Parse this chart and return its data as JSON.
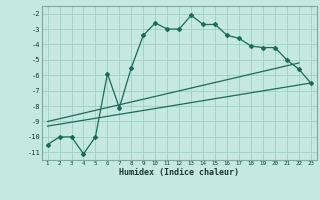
{
  "xlabel": "Humidex (Indice chaleur)",
  "bg_color": "#c5e8e0",
  "grid_color": "#9dcfc5",
  "line_color": "#1a6b5a",
  "xlim": [
    0.5,
    23.5
  ],
  "ylim": [
    -11.5,
    -1.5
  ],
  "x_ticks": [
    1,
    2,
    3,
    4,
    5,
    6,
    7,
    8,
    9,
    10,
    11,
    12,
    13,
    14,
    15,
    16,
    17,
    18,
    19,
    20,
    21,
    22,
    23
  ],
  "y_ticks": [
    -11,
    -10,
    -9,
    -8,
    -7,
    -6,
    -5,
    -4,
    -3,
    -2
  ],
  "line1_x": [
    1,
    2,
    3,
    4,
    5,
    6,
    7,
    8,
    9,
    10,
    11,
    12,
    13,
    14,
    15,
    16,
    17,
    18,
    19,
    20,
    21,
    22,
    23
  ],
  "line1_y": [
    -10.5,
    -10.0,
    -10.0,
    -11.1,
    -10.0,
    -5.9,
    -8.1,
    -5.5,
    -3.4,
    -2.6,
    -3.0,
    -3.0,
    -2.1,
    -2.7,
    -2.7,
    -3.4,
    -3.6,
    -4.1,
    -4.2,
    -4.2,
    -5.0,
    -5.6,
    -6.5
  ],
  "line2_x": [
    1,
    22
  ],
  "line2_y": [
    -9.0,
    -5.2
  ],
  "line3_x": [
    1,
    23
  ],
  "line3_y": [
    -9.3,
    -6.5
  ]
}
